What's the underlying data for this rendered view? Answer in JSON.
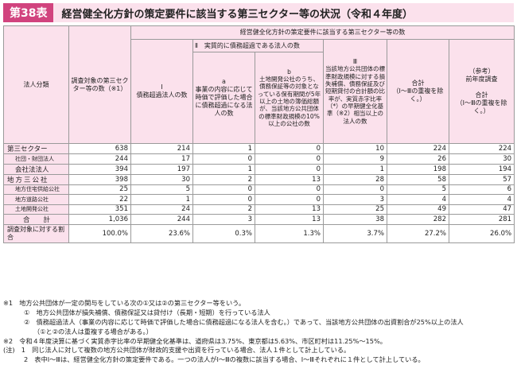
{
  "header": {
    "badge": "第38表",
    "title": "経営健全化方針の策定要件に該当する第三セクター等の状況（令和４年度）"
  },
  "table": {
    "col_category": "法人分類",
    "col_survey": "調査対象の第三セクター等の数（※1）",
    "group_main": "経営健全化方針の策定要件に該当する第三セクター等の数",
    "col_i": "Ⅰ\n債務超過法人の数",
    "group_ii": "Ⅱ　実質的に債務超過である法人の数",
    "col_a": "a\n事業の内容に応じて時価で評価した場合に債務超過になる法人の数",
    "col_b": "b\n土地開発公社のうち、債務保証等の対象となっている保有期間が5年以上の土地の簿価総額が、当該地方公共団体の標準財政規模の10%以上の公社の数",
    "col_iii": "Ⅲ\n当該地方公共団体の標準財政規模に対する損失補償、債務保証及び短期貸付の合計額の比率が、実質赤字比率（*）の早期健全化基準（※2）相当以上の法人の数",
    "col_total": "合計\n（Ⅰ～Ⅲの重複を除く。）",
    "col_prev": "（参考）\n前年度調査\n\n合計\n（Ⅰ～Ⅲの重複を除く。）",
    "rows": [
      {
        "label": "第三セクター",
        "survey": "638",
        "i": "214",
        "a": "1",
        "b": "0",
        "iii": "10",
        "total": "224",
        "prev": "224"
      },
      {
        "label": "社団・財団法人",
        "survey": "244",
        "i": "17",
        "a": "0",
        "b": "0",
        "iii": "9",
        "total": "26",
        "prev": "30"
      },
      {
        "label": "会社法法人",
        "survey": "394",
        "i": "197",
        "a": "1",
        "b": "0",
        "iii": "1",
        "total": "198",
        "prev": "194"
      },
      {
        "label": "地方三公社",
        "survey": "398",
        "i": "30",
        "a": "2",
        "b": "13",
        "iii": "28",
        "total": "58",
        "prev": "57"
      },
      {
        "label": "地方住宅供給公社",
        "survey": "25",
        "i": "5",
        "a": "0",
        "b": "0",
        "iii": "0",
        "total": "5",
        "prev": "6"
      },
      {
        "label": "地方道路公社",
        "survey": "22",
        "i": "1",
        "a": "0",
        "b": "0",
        "iii": "3",
        "total": "4",
        "prev": "4"
      },
      {
        "label": "土地開発公社",
        "survey": "351",
        "i": "24",
        "a": "2",
        "b": "13",
        "iii": "25",
        "total": "49",
        "prev": "47"
      },
      {
        "label": "合　　計",
        "survey": "1,036",
        "i": "244",
        "a": "3",
        "b": "13",
        "iii": "38",
        "total": "282",
        "prev": "281"
      }
    ],
    "ratio": {
      "label": "調査対象に対する割合",
      "survey": "100.0%",
      "i": "23.6%",
      "a": "0.3%",
      "b": "1.3%",
      "iii": "3.7%",
      "total": "27.2%",
      "prev": "26.0%"
    }
  },
  "notes": [
    "※1　地方公共団体が一定の関与をしている次の①又は②の第三セクター等をいう。",
    "①　地方公共団体が損失補償、債務保証又は貸付け（長期・短期）を行っている法人",
    "②　債務超過法人（事業の内容に応じて時価で評価した場合に債務超過になる法人を含む。）であって、当該地方公共団体の出資割合が25%以上の法人",
    "（①と②の法人は重複する場合がある。）",
    "※2　令和４年度決算に基づく実質赤字比率の早期健全化基準は、道府県は3.75%、東京都は5.63%、市区町村は11.25%～15%。",
    "(注)　1　同じ法人に対して複数の地方公共団体が財政的支援や出資を行っている場合、法人１件として計上している。",
    "2　表中Ⅰ～Ⅲは、経営健全化方針の策定要件である。一つの法人がⅠ～Ⅲの複数に該当する場合、Ⅰ～Ⅲそれぞれに１件として計上している。"
  ]
}
